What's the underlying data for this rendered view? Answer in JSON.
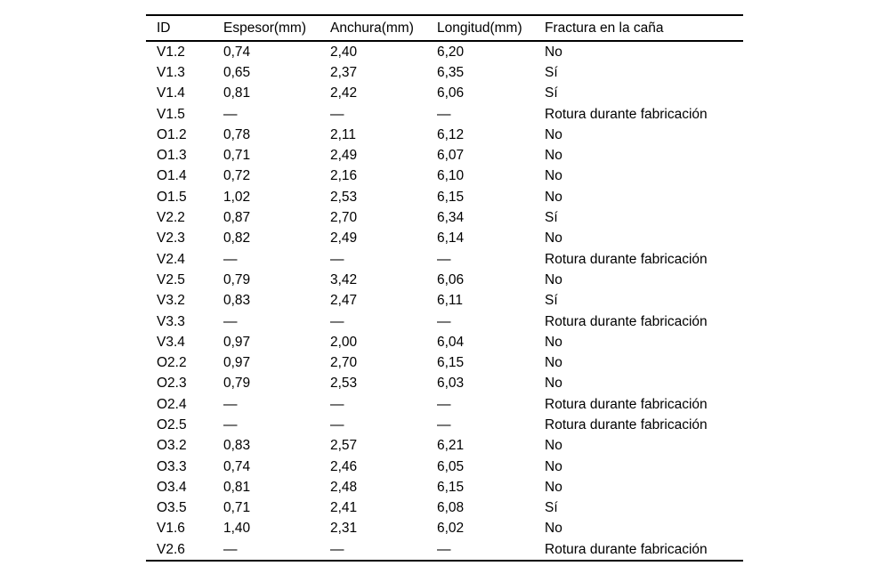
{
  "page": {
    "background_color": "#ffffff",
    "text_color": "#000000",
    "rule_color": "#000000"
  },
  "table": {
    "columns": [
      "ID",
      "Espesor(mm)",
      "Anchura(mm)",
      "Longitud(mm)",
      "Fractura en la caña"
    ],
    "missing_value_symbol": "—",
    "rows": [
      [
        "V1.2",
        "0,74",
        "2,40",
        "6,20",
        "No"
      ],
      [
        "V1.3",
        "0,65",
        "2,37",
        "6,35",
        "Sí"
      ],
      [
        "V1.4",
        "0,81",
        "2,42",
        "6,06",
        "Sí"
      ],
      [
        "V1.5",
        "—",
        "—",
        "—",
        "Rotura durante fabricación"
      ],
      [
        "O1.2",
        "0,78",
        "2,11",
        "6,12",
        "No"
      ],
      [
        "O1.3",
        "0,71",
        "2,49",
        "6,07",
        "No"
      ],
      [
        "O1.4",
        "0,72",
        "2,16",
        "6,10",
        "No"
      ],
      [
        "O1.5",
        "1,02",
        "2,53",
        "6,15",
        "No"
      ],
      [
        "V2.2",
        "0,87",
        "2,70",
        "6,34",
        "Sí"
      ],
      [
        "V2.3",
        "0,82",
        "2,49",
        "6,14",
        "No"
      ],
      [
        "V2.4",
        "—",
        "—",
        "—",
        "Rotura durante fabricación"
      ],
      [
        "V2.5",
        "0,79",
        "3,42",
        "6,06",
        "No"
      ],
      [
        "V3.2",
        "0,83",
        "2,47",
        "6,11",
        "Sí"
      ],
      [
        "V3.3",
        "—",
        "—",
        "—",
        "Rotura durante fabricación"
      ],
      [
        "V3.4",
        "0,97",
        "2,00",
        "6,04",
        "No"
      ],
      [
        "O2.2",
        "0,97",
        "2,70",
        "6,15",
        "No"
      ],
      [
        "O2.3",
        "0,79",
        "2,53",
        "6,03",
        "No"
      ],
      [
        "O2.4",
        "—",
        "—",
        "—",
        "Rotura durante fabricación"
      ],
      [
        "O2.5",
        "—",
        "—",
        "—",
        "Rotura durante fabricación"
      ],
      [
        "O3.2",
        "0,83",
        "2,57",
        "6,21",
        "No"
      ],
      [
        "O3.3",
        "0,74",
        "2,46",
        "6,05",
        "No"
      ],
      [
        "O3.4",
        "0,81",
        "2,48",
        "6,15",
        "No"
      ],
      [
        "O3.5",
        "0,71",
        "2,41",
        "6,08",
        "Sí"
      ],
      [
        "V1.6",
        "1,40",
        "2,31",
        "6,02",
        "No"
      ],
      [
        "V2.6",
        "—",
        "—",
        "—",
        "Rotura durante fabricación"
      ]
    ]
  }
}
